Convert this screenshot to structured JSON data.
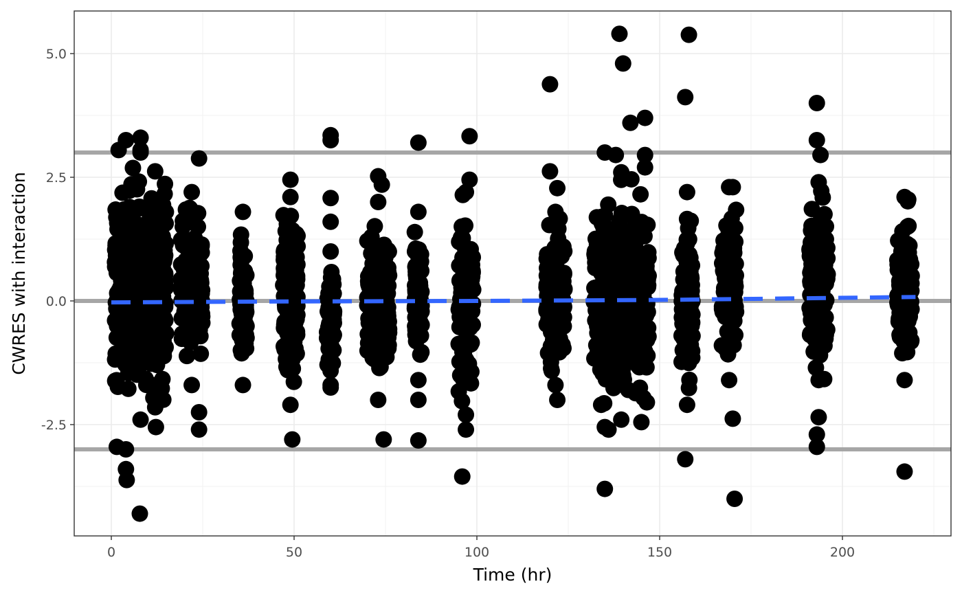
{
  "chart_data": {
    "type": "scatter",
    "xlabel": "Time (hr)",
    "ylabel": "CWRES with interaction",
    "xlim": [
      -10,
      230
    ],
    "ylim": [
      -4.8,
      5.9
    ],
    "x_ticks": [
      0,
      50,
      100,
      150,
      200
    ],
    "y_ticks": [
      -2.5,
      0,
      2.5,
      5
    ],
    "x_tick_labels": [
      "0",
      "50",
      "100",
      "150",
      "200"
    ],
    "y_tick_labels": [
      "-2.5",
      "0.0",
      "2.5",
      "5.0"
    ],
    "grid": true,
    "reference_lines": [
      {
        "y": 3,
        "color": "#a6a6a6"
      },
      {
        "y": 0,
        "color": "#a6a6a6"
      },
      {
        "y": -3,
        "color": "#a6a6a6"
      }
    ],
    "trend_line": {
      "style": "dashed",
      "color": "#3366ff",
      "x": [
        0,
        50,
        100,
        150,
        220
      ],
      "y": [
        -0.03,
        -0.01,
        0.0,
        0.02,
        0.08
      ]
    },
    "point_color": "#000000",
    "bands": [
      {
        "x": [
          1,
          15
        ],
        "ymin": -2.4,
        "ymax": 3.0
      },
      {
        "x": [
          19,
          25
        ],
        "ymin": -1.7,
        "ymax": 2.2
      },
      {
        "x": [
          35,
          37
        ],
        "ymin": -1.7,
        "ymax": 1.8
      },
      {
        "x": [
          47,
          51
        ],
        "ymin": -2.1,
        "ymax": 2.1
      },
      {
        "x": [
          59,
          61
        ],
        "ymin": -1.7,
        "ymax": 1.0
      },
      {
        "x": [
          70,
          76
        ],
        "ymin": -2.0,
        "ymax": 2.0
      },
      {
        "x": [
          83,
          85
        ],
        "ymin": -1.6,
        "ymax": 1.8
      },
      {
        "x": [
          95,
          99
        ],
        "ymin": -2.3,
        "ymax": 2.2
      },
      {
        "x": [
          119,
          124
        ],
        "ymin": -1.7,
        "ymax": 1.8
      },
      {
        "x": [
          132,
          147
        ],
        "ymin": -2.4,
        "ymax": 2.6
      },
      {
        "x": [
          156,
          159
        ],
        "ymin": -2.1,
        "ymax": 2.2
      },
      {
        "x": [
          167,
          171
        ],
        "ymin": -1.6,
        "ymax": 2.3
      },
      {
        "x": [
          191,
          196
        ],
        "ymin": -1.6,
        "ymax": 2.4
      },
      {
        "x": [
          215,
          219
        ],
        "ymin": -1.6,
        "ymax": 2.1
      }
    ],
    "outliers": [
      {
        "x": 1.5,
        "y": -2.95
      },
      {
        "x": 4,
        "y": -3.0
      },
      {
        "x": 4,
        "y": -3.4
      },
      {
        "x": 4.2,
        "y": -3.62
      },
      {
        "x": 7.8,
        "y": -4.3
      },
      {
        "x": 12.2,
        "y": -2.55
      },
      {
        "x": 12,
        "y": -2.15
      },
      {
        "x": 4,
        "y": 3.25
      },
      {
        "x": 8,
        "y": 3.3
      },
      {
        "x": 8,
        "y": 3.05
      },
      {
        "x": 2,
        "y": 3.05
      },
      {
        "x": 12,
        "y": 2.62
      },
      {
        "x": 24,
        "y": 2.88
      },
      {
        "x": 24,
        "y": -2.6
      },
      {
        "x": 24,
        "y": -2.25
      },
      {
        "x": 49.5,
        "y": -2.8
      },
      {
        "x": 49,
        "y": 2.45
      },
      {
        "x": 60,
        "y": 3.35
      },
      {
        "x": 60,
        "y": 3.25
      },
      {
        "x": 60,
        "y": 2.08
      },
      {
        "x": 60,
        "y": 1.6
      },
      {
        "x": 60,
        "y": -1.75
      },
      {
        "x": 73,
        "y": 2.52
      },
      {
        "x": 74,
        "y": 2.35
      },
      {
        "x": 74.5,
        "y": -2.8
      },
      {
        "x": 84,
        "y": 3.2
      },
      {
        "x": 84,
        "y": -2.0
      },
      {
        "x": 84,
        "y": -2.82
      },
      {
        "x": 96,
        "y": -3.55
      },
      {
        "x": 97,
        "y": -2.6
      },
      {
        "x": 98,
        "y": 3.33
      },
      {
        "x": 98,
        "y": 2.45
      },
      {
        "x": 120,
        "y": 4.38
      },
      {
        "x": 120,
        "y": 2.62
      },
      {
        "x": 122,
        "y": 2.28
      },
      {
        "x": 122,
        "y": -2.0
      },
      {
        "x": 134,
        "y": -2.1
      },
      {
        "x": 135,
        "y": -2.55
      },
      {
        "x": 136,
        "y": -2.6
      },
      {
        "x": 135,
        "y": -3.8
      },
      {
        "x": 135,
        "y": 3.0
      },
      {
        "x": 138,
        "y": 2.95
      },
      {
        "x": 139,
        "y": 5.4
      },
      {
        "x": 140,
        "y": 4.8
      },
      {
        "x": 142,
        "y": 3.6
      },
      {
        "x": 146,
        "y": 3.7
      },
      {
        "x": 146,
        "y": 2.95
      },
      {
        "x": 146,
        "y": 2.7
      },
      {
        "x": 145,
        "y": -2.45
      },
      {
        "x": 146.5,
        "y": -2.05
      },
      {
        "x": 157,
        "y": 4.12
      },
      {
        "x": 158,
        "y": 5.38
      },
      {
        "x": 157,
        "y": -3.2
      },
      {
        "x": 158.5,
        "y": 1.62
      },
      {
        "x": 170.5,
        "y": -4.0
      },
      {
        "x": 170,
        "y": -2.38
      },
      {
        "x": 170,
        "y": 2.3
      },
      {
        "x": 193,
        "y": 4.0
      },
      {
        "x": 193,
        "y": 3.25
      },
      {
        "x": 194,
        "y": 2.95
      },
      {
        "x": 193,
        "y": -2.95
      },
      {
        "x": 193,
        "y": -2.7
      },
      {
        "x": 193.5,
        "y": -2.35
      },
      {
        "x": 195,
        "y": -1.58
      },
      {
        "x": 217,
        "y": -3.45
      },
      {
        "x": 218,
        "y": 2.05
      }
    ]
  }
}
